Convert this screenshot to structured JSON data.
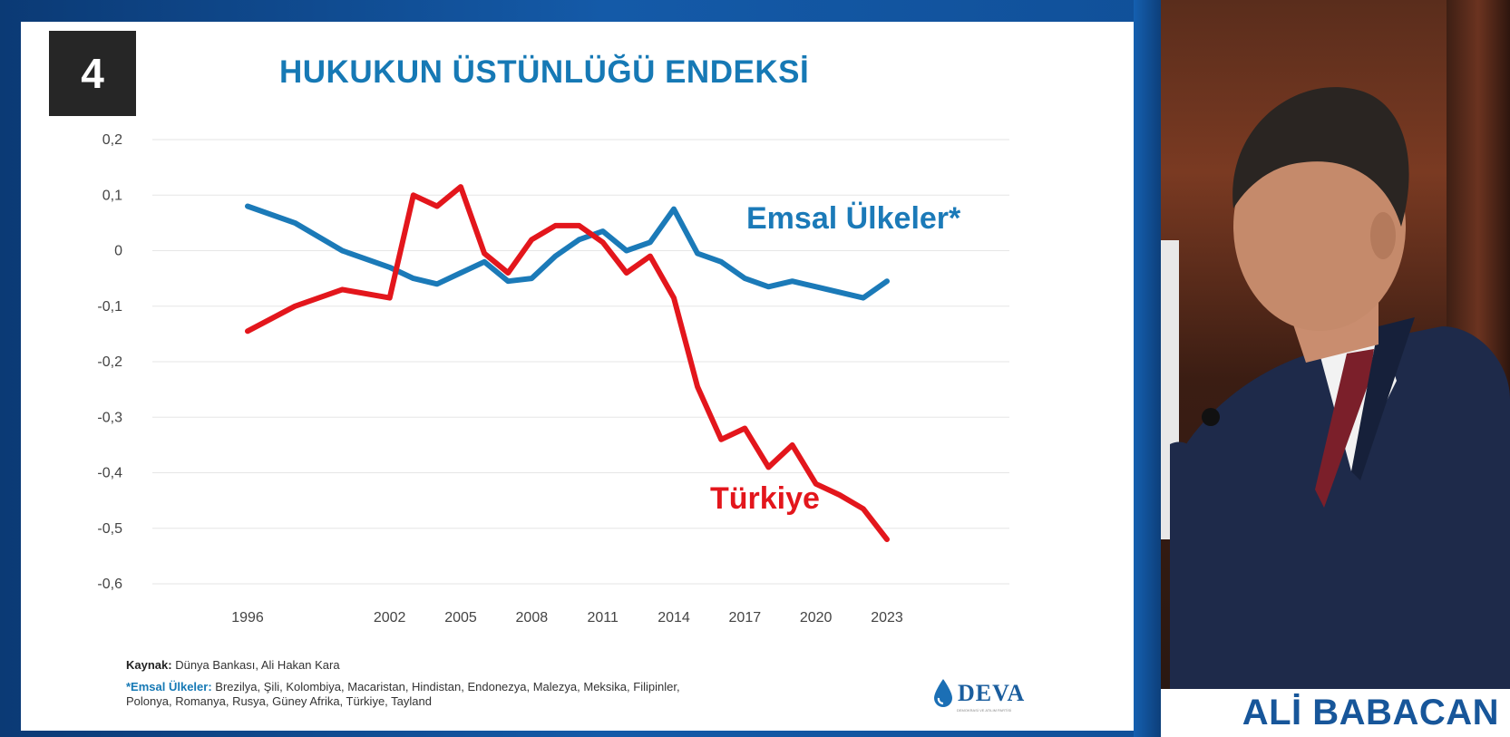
{
  "slide": {
    "number": "4",
    "title": "HUKUKUN ÜSTÜNLÜĞÜ ENDEKSİ",
    "source_label": "Kaynak:",
    "source_text": "Dünya Bankası, Ali Hakan Kara",
    "peers_label": "*Emsal Ülkeler:",
    "peers_text": "Brezilya, Şili, Kolombiya, Macaristan, Hindistan, Endonezya, Malezya, Meksika, Filipinler, Polonya, Romanya, Rusya, Güney Afrika, Türkiye, Tayland",
    "logo_text": "DEVA",
    "logo_subtext": "DEMOKRASİ VE ATILIM PARTİSİ"
  },
  "chart_data": {
    "type": "line",
    "title": "HUKUKUN ÜSTÜNLÜĞÜ ENDEKSİ",
    "xlabel": "",
    "ylabel": "",
    "ylim": [
      -0.6,
      0.2
    ],
    "grid": true,
    "x_ticks": [
      "1996",
      "2002",
      "2005",
      "2008",
      "2011",
      "2014",
      "2017",
      "2020",
      "2023"
    ],
    "y_ticks": [
      "0,2",
      "0,1",
      "0",
      "-0,1",
      "-0,2",
      "-0,3",
      "-0,4",
      "-0,5",
      "-0,6"
    ],
    "x": [
      1996,
      1998,
      2000,
      2002,
      2003,
      2004,
      2005,
      2006,
      2007,
      2008,
      2009,
      2010,
      2011,
      2012,
      2013,
      2014,
      2015,
      2016,
      2017,
      2018,
      2019,
      2020,
      2021,
      2022,
      2023
    ],
    "series": [
      {
        "name": "Emsal Ülkeler*",
        "color": "#1b7ab8",
        "values": [
          0.08,
          0.05,
          0.0,
          -0.03,
          -0.05,
          -0.06,
          -0.04,
          -0.02,
          -0.055,
          -0.05,
          -0.01,
          0.02,
          0.035,
          0.0,
          0.015,
          0.075,
          -0.005,
          -0.02,
          -0.05,
          -0.065,
          -0.055,
          -0.065,
          -0.075,
          -0.085,
          -0.055
        ]
      },
      {
        "name": "Türkiye",
        "color": "#e3161c",
        "values": [
          -0.145,
          -0.1,
          -0.07,
          -0.085,
          0.1,
          0.08,
          0.115,
          -0.005,
          -0.04,
          0.02,
          0.045,
          0.045,
          0.015,
          -0.04,
          -0.01,
          -0.085,
          -0.245,
          -0.34,
          -0.32,
          -0.39,
          -0.35,
          -0.42,
          -0.44,
          -0.465,
          -0.52
        ]
      }
    ]
  },
  "speaker": {
    "name": "ALİ BABACAN"
  }
}
